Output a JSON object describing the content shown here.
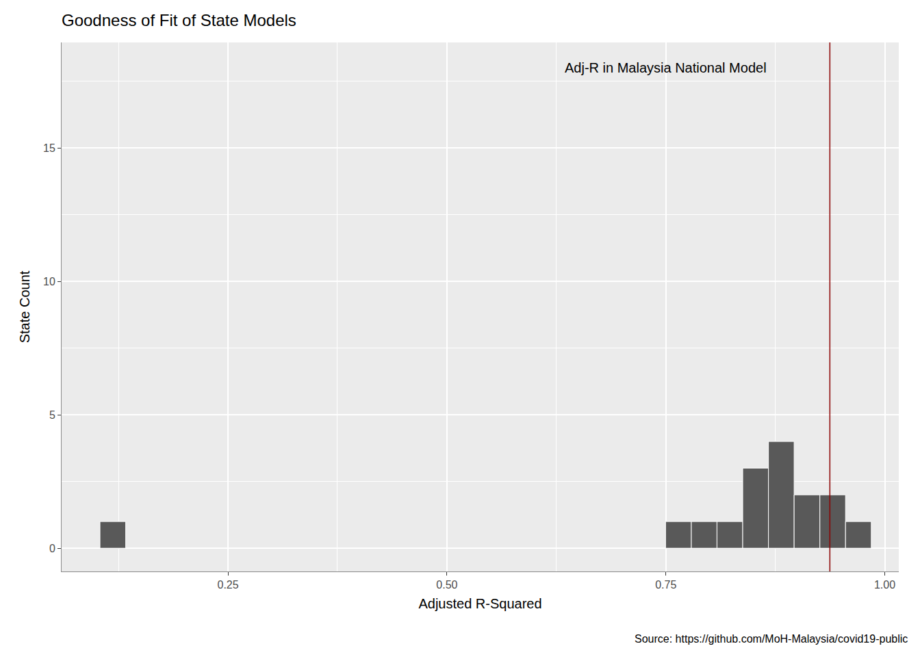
{
  "chart_data": {
    "type": "histogram",
    "title": "Goodness of Fit of State Models",
    "x_label": "Adjusted R-Squared",
    "y_label": "State Count",
    "caption": "Source: https://github.com/MoH-Malaysia/covid19-public",
    "bins": [
      0.1038,
      0.1332,
      0.1625,
      0.1919,
      0.2212,
      0.2506,
      0.28,
      0.3093,
      0.3387,
      0.368,
      0.3974,
      0.4268,
      0.4561,
      0.4855,
      0.5148,
      0.5442,
      0.5736,
      0.6029,
      0.6323,
      0.6616,
      0.691,
      0.7204,
      0.7497,
      0.7791,
      0.8084,
      0.8378,
      0.8672,
      0.8965,
      0.9259,
      0.9552,
      0.9846
    ],
    "values": [
      1,
      0,
      0,
      0,
      0,
      0,
      0,
      0,
      0,
      0,
      0,
      0,
      0,
      0,
      0,
      0,
      0,
      0,
      0,
      0,
      0,
      0,
      1,
      1,
      1,
      3,
      4,
      2,
      2,
      1
    ],
    "color": "#595959",
    "reference_line": {
      "x": 0.9373,
      "color": "#8b0000"
    },
    "annotations": [
      {
        "text": "Adj-R in Malaysia National Model",
        "x": 0.75,
        "y": 18
      }
    ],
    "xlim": [
      0.06,
      1.016
    ],
    "xticks": [
      0.25,
      {
        "value": 0.5,
        "label": "0.50"
      },
      0.75,
      {
        "value": 1.0,
        "label": "1.00"
      }
    ],
    "ylim": [
      -0.87,
      18.95
    ],
    "yticks": [
      0,
      5,
      10,
      15
    ],
    "grid": true
  }
}
